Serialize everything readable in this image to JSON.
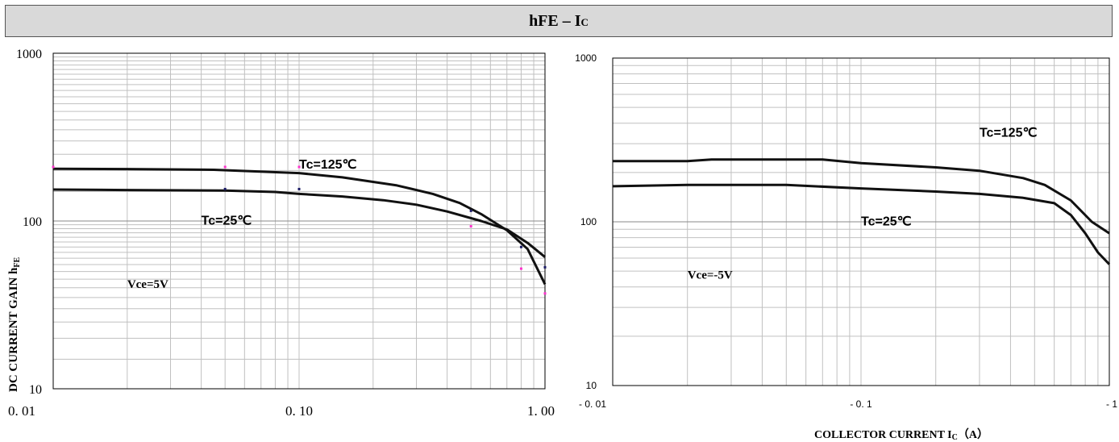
{
  "header": {
    "main": "hFE – I",
    "sub": "C"
  },
  "chart_data": [
    {
      "type": "line",
      "title": "",
      "ylabel_main": "DC CURRENT GAIN   h",
      "ylabel_sub": "FE",
      "x_scale": "log",
      "y_scale": "log",
      "xlim": [
        0.01,
        1.0
      ],
      "ylim": [
        10,
        1000
      ],
      "x_ticks": [
        {
          "v": 0.01,
          "label": "0. 01"
        },
        {
          "v": 0.1,
          "label": "0. 10"
        },
        {
          "v": 1.0,
          "label": "1. 00"
        }
      ],
      "y_ticks": [
        {
          "v": 10,
          "label": "10"
        },
        {
          "v": 100,
          "label": "100"
        },
        {
          "v": 1000,
          "label": "1000"
        }
      ],
      "grid": true,
      "series": [
        {
          "name": "Tc=125℃",
          "x": [
            0.01,
            0.02,
            0.045,
            0.1,
            0.15,
            0.25,
            0.35,
            0.45,
            0.55,
            0.7,
            0.85,
            1.0
          ],
          "y": [
            205,
            204,
            202,
            193,
            182,
            163,
            145,
            128,
            110,
            88,
            68,
            42
          ]
        },
        {
          "name": "Tc=25℃",
          "x": [
            0.01,
            0.02,
            0.05,
            0.08,
            0.1,
            0.15,
            0.22,
            0.3,
            0.4,
            0.55,
            0.7,
            0.85,
            1.0
          ],
          "y": [
            154,
            153,
            152,
            149,
            145,
            140,
            133,
            125,
            114,
            100,
            89,
            74,
            61
          ]
        }
      ],
      "markers": [
        {
          "x": 0.01,
          "y": 210,
          "color": "#ff33cc"
        },
        {
          "x": 0.05,
          "y": 210,
          "color": "#ff33cc"
        },
        {
          "x": 0.05,
          "y": 155,
          "color": "#1a1a66"
        },
        {
          "x": 0.1,
          "y": 210,
          "color": "#ff33cc"
        },
        {
          "x": 0.1,
          "y": 155,
          "color": "#1a1a66"
        },
        {
          "x": 0.5,
          "y": 115,
          "color": "#1a1a66"
        },
        {
          "x": 0.5,
          "y": 93,
          "color": "#ff33cc"
        },
        {
          "x": 0.8,
          "y": 52,
          "color": "#ff33cc"
        },
        {
          "x": 0.8,
          "y": 70,
          "color": "#1a1a66"
        },
        {
          "x": 1.0,
          "y": 53,
          "color": "#1a1a66"
        },
        {
          "x": 1.0,
          "y": 37,
          "color": "#ff33cc"
        }
      ],
      "annotations": [
        {
          "text": "Tc=125℃",
          "x": 0.1,
          "y": 205
        },
        {
          "text": "Tc=25℃",
          "x": 0.04,
          "y": 95
        },
        {
          "text": "Vce=5V",
          "x": 0.02,
          "y": 40
        }
      ]
    },
    {
      "type": "line",
      "title": "",
      "xlabel_main": "COLLECTOR CURRENT     I",
      "xlabel_sub": "C",
      "xlabel_tail": "（A）",
      "x_scale": "log",
      "y_scale": "log",
      "xlim": [
        -0.01,
        -1
      ],
      "ylim": [
        10,
        1000
      ],
      "x_ticks": [
        {
          "v": 0.01,
          "label": "- 0. 01"
        },
        {
          "v": 0.1,
          "label": "- 0. 1"
        },
        {
          "v": 1,
          "label": "- 1"
        }
      ],
      "y_ticks": [
        {
          "v": 10,
          "label": "10"
        },
        {
          "v": 100,
          "label": "100"
        },
        {
          "v": 1000,
          "label": "1000"
        }
      ],
      "grid": true,
      "series": [
        {
          "name": "Tc=125℃",
          "x": [
            0.01,
            0.02,
            0.025,
            0.07,
            0.1,
            0.2,
            0.3,
            0.45,
            0.55,
            0.7,
            0.85,
            1.0
          ],
          "y": [
            235,
            235,
            240,
            240,
            228,
            215,
            205,
            185,
            168,
            135,
            100,
            85
          ]
        },
        {
          "name": "Tc=25℃",
          "x": [
            0.01,
            0.02,
            0.05,
            0.1,
            0.2,
            0.3,
            0.45,
            0.6,
            0.7,
            0.8,
            0.9,
            1.0
          ],
          "y": [
            165,
            168,
            168,
            160,
            153,
            148,
            140,
            130,
            110,
            85,
            65,
            55
          ]
        }
      ],
      "annotations": [
        {
          "text": "Tc=125℃",
          "x": 0.3,
          "y": 330
        },
        {
          "text": "Tc=25℃",
          "x": 0.1,
          "y": 95
        },
        {
          "text": "Vce=-5V",
          "x": 0.02,
          "y": 45
        }
      ]
    }
  ]
}
